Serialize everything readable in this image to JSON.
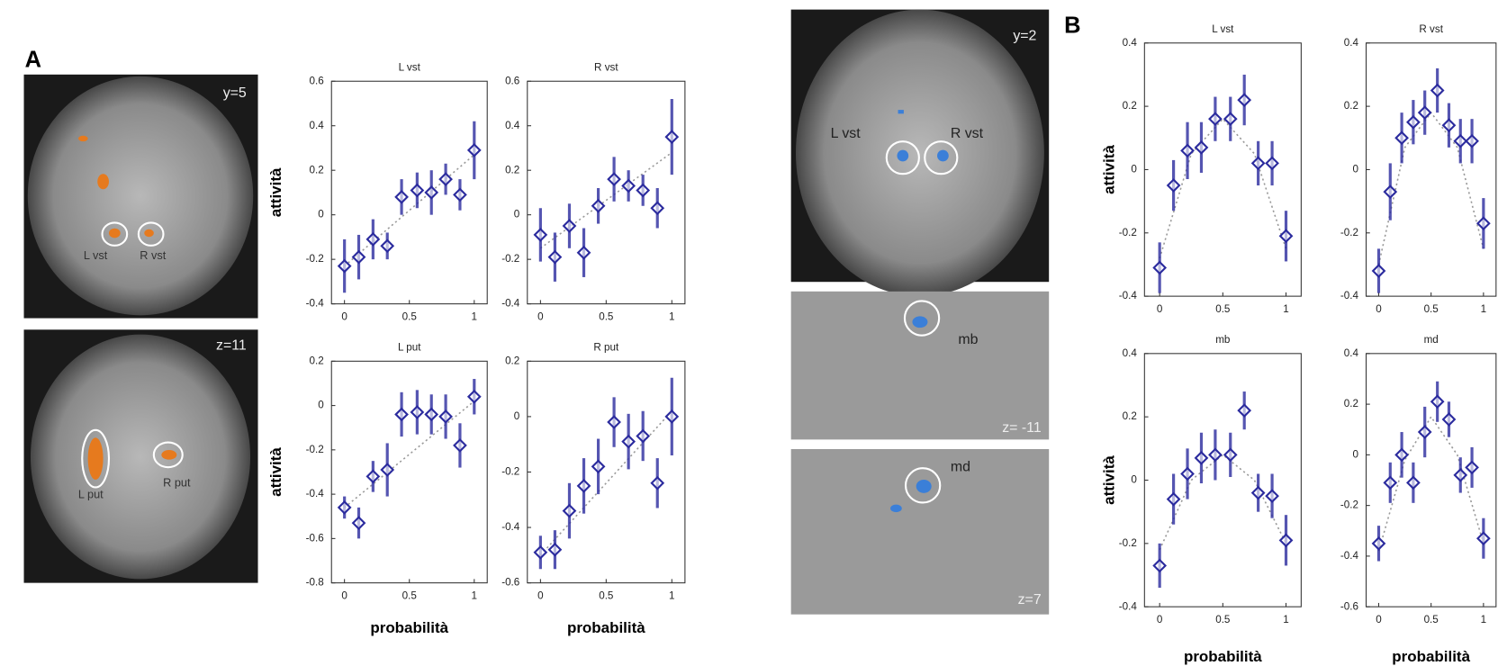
{
  "figure": {
    "panel_labels": [
      "A",
      "B"
    ],
    "images": [
      {
        "labels": [
          "y=5",
          "L vst",
          "R vst"
        ]
      },
      {
        "labels": [
          "z=11",
          "L put",
          "R put"
        ]
      },
      {
        "labels": [
          "y=2",
          "L vst",
          "R vst"
        ]
      },
      {
        "labels": [
          "mb",
          "z= -11"
        ]
      },
      {
        "labels": [
          "md",
          "z=7"
        ]
      }
    ]
  },
  "chart_data": [
    {
      "type": "errorbar",
      "title": "L vst",
      "y_label": "attività",
      "color": "#2b2b9e",
      "fit_color": "#999999",
      "x": [
        0,
        0.11,
        0.22,
        0.33,
        0.44,
        0.56,
        0.67,
        0.78,
        0.89,
        1
      ],
      "values": [
        -0.23,
        -0.19,
        -0.11,
        -0.14,
        0.08,
        0.11,
        0.1,
        0.16,
        0.09,
        0.29
      ],
      "errors": [
        0.12,
        0.1,
        0.09,
        0.06,
        0.08,
        0.08,
        0.1,
        0.07,
        0.07,
        0.13
      ],
      "fit_x": [
        0,
        1
      ],
      "fit_values": [
        -0.23,
        0.27
      ],
      "xlim": [
        -0.1,
        1.1
      ],
      "ylim": [
        -0.4,
        0.6
      ],
      "xticks": [
        0,
        0.5,
        1
      ],
      "yticks": [
        -0.4,
        -0.2,
        0,
        0.2,
        0.4,
        0.6
      ]
    },
    {
      "type": "errorbar",
      "title": "R vst",
      "color": "#2b2b9e",
      "fit_color": "#999999",
      "x": [
        0,
        0.11,
        0.22,
        0.33,
        0.44,
        0.56,
        0.67,
        0.78,
        0.89,
        1
      ],
      "values": [
        -0.09,
        -0.19,
        -0.05,
        -0.17,
        0.04,
        0.16,
        0.13,
        0.11,
        0.03,
        0.35
      ],
      "errors": [
        0.12,
        0.11,
        0.1,
        0.11,
        0.08,
        0.1,
        0.07,
        0.07,
        0.09,
        0.17
      ],
      "fit_x": [
        0,
        1
      ],
      "fit_values": [
        -0.15,
        0.28
      ],
      "xlim": [
        -0.1,
        1.1
      ],
      "ylim": [
        -0.4,
        0.6
      ],
      "xticks": [
        0,
        0.5,
        1
      ],
      "yticks": [
        -0.4,
        -0.2,
        0,
        0.2,
        0.4,
        0.6
      ]
    },
    {
      "type": "errorbar",
      "title": "L put",
      "y_label": "attività",
      "x_label": "probabilità",
      "color": "#2b2b9e",
      "fit_color": "#999999",
      "x": [
        0,
        0.11,
        0.22,
        0.33,
        0.44,
        0.56,
        0.67,
        0.78,
        0.89,
        1
      ],
      "values": [
        -0.46,
        -0.53,
        -0.32,
        -0.29,
        -0.04,
        -0.03,
        -0.04,
        -0.05,
        -0.18,
        0.04
      ],
      "errors": [
        0.05,
        0.07,
        0.07,
        0.12,
        0.1,
        0.1,
        0.09,
        0.1,
        0.1,
        0.08
      ],
      "fit_x": [
        0,
        1
      ],
      "fit_values": [
        -0.46,
        0.02
      ],
      "xlim": [
        -0.1,
        1.1
      ],
      "ylim": [
        -0.8,
        0.2
      ],
      "xticks": [
        0,
        0.5,
        1
      ],
      "yticks": [
        -0.8,
        -0.6,
        -0.4,
        -0.2,
        0,
        0.2
      ]
    },
    {
      "type": "errorbar",
      "title": "R put",
      "x_label": "probabilità",
      "color": "#2b2b9e",
      "fit_color": "#999999",
      "x": [
        0,
        0.11,
        0.22,
        0.33,
        0.44,
        0.56,
        0.67,
        0.78,
        0.89,
        1
      ],
      "values": [
        -0.49,
        -0.48,
        -0.34,
        -0.25,
        -0.18,
        -0.02,
        -0.09,
        -0.07,
        -0.24,
        0
      ],
      "errors": [
        0.06,
        0.07,
        0.1,
        0.1,
        0.1,
        0.09,
        0.1,
        0.09,
        0.09,
        0.14
      ],
      "fit_x": [
        0,
        1
      ],
      "fit_values": [
        -0.5,
        0.02
      ],
      "xlim": [
        -0.1,
        1.1
      ],
      "ylim": [
        -0.6,
        0.2
      ],
      "xticks": [
        0,
        0.5,
        1
      ],
      "yticks": [
        -0.6,
        -0.4,
        -0.2,
        0,
        0.2
      ]
    },
    {
      "type": "errorbar",
      "title": "L vst",
      "y_label": "attività",
      "color": "#2b2b9e",
      "fit_color": "#999999",
      "x": [
        0,
        0.11,
        0.22,
        0.33,
        0.44,
        0.56,
        0.67,
        0.78,
        0.89,
        1
      ],
      "values": [
        -0.31,
        -0.05,
        0.06,
        0.07,
        0.16,
        0.16,
        0.22,
        0.02,
        0.02,
        -0.21
      ],
      "errors": [
        0.08,
        0.08,
        0.09,
        0.08,
        0.07,
        0.07,
        0.08,
        0.07,
        0.07,
        0.08
      ],
      "fit_x": [
        0,
        0.25,
        0.5,
        0.75,
        1
      ],
      "fit_values": [
        -0.28,
        0.05,
        0.16,
        0.05,
        -0.25
      ],
      "xlim": [
        -0.12,
        1.12
      ],
      "ylim": [
        -0.4,
        0.4
      ],
      "xticks": [
        0,
        0.5,
        1
      ],
      "yticks": [
        -0.4,
        -0.2,
        0,
        0.2,
        0.4
      ]
    },
    {
      "type": "errorbar",
      "title": "R vst",
      "color": "#2b2b9e",
      "fit_color": "#999999",
      "x": [
        0,
        0.11,
        0.22,
        0.33,
        0.44,
        0.56,
        0.67,
        0.78,
        0.89,
        1
      ],
      "values": [
        -0.32,
        -0.07,
        0.1,
        0.15,
        0.18,
        0.25,
        0.14,
        0.09,
        0.09,
        -0.17
      ],
      "errors": [
        0.07,
        0.09,
        0.08,
        0.07,
        0.07,
        0.07,
        0.07,
        0.07,
        0.07,
        0.08
      ],
      "fit_x": [
        0,
        0.25,
        0.5,
        0.75,
        1
      ],
      "fit_values": [
        -0.3,
        0.07,
        0.18,
        0.07,
        -0.25
      ],
      "xlim": [
        -0.12,
        1.12
      ],
      "ylim": [
        -0.4,
        0.4
      ],
      "xticks": [
        0,
        0.5,
        1
      ],
      "yticks": [
        -0.4,
        -0.2,
        0,
        0.2,
        0.4
      ]
    },
    {
      "type": "errorbar",
      "title": "mb",
      "y_label": "attività",
      "x_label": "probabilità",
      "color": "#2b2b9e",
      "fit_color": "#999999",
      "x": [
        0,
        0.11,
        0.22,
        0.33,
        0.44,
        0.56,
        0.67,
        0.78,
        0.89,
        1
      ],
      "values": [
        -0.27,
        -0.06,
        0.02,
        0.07,
        0.08,
        0.08,
        0.22,
        -0.04,
        -0.05,
        -0.19
      ],
      "errors": [
        0.07,
        0.08,
        0.08,
        0.08,
        0.08,
        0.07,
        0.06,
        0.06,
        0.07,
        0.08
      ],
      "fit_x": [
        0,
        0.25,
        0.5,
        0.75,
        1
      ],
      "fit_values": [
        -0.22,
        0,
        0.08,
        0,
        -0.2
      ],
      "xlim": [
        -0.12,
        1.12
      ],
      "ylim": [
        -0.4,
        0.4
      ],
      "xticks": [
        0,
        0.5,
        1
      ],
      "yticks": [
        -0.4,
        -0.2,
        0,
        0.2,
        0.4
      ]
    },
    {
      "type": "errorbar",
      "title": "md",
      "x_label": "probabilità",
      "color": "#2b2b9e",
      "fit_color": "#999999",
      "x": [
        0,
        0.11,
        0.22,
        0.33,
        0.44,
        0.56,
        0.67,
        0.78,
        0.89,
        1
      ],
      "values": [
        -0.35,
        -0.11,
        0,
        -0.11,
        0.09,
        0.21,
        0.14,
        -0.08,
        -0.05,
        -0.33
      ],
      "errors": [
        0.07,
        0.08,
        0.09,
        0.08,
        0.1,
        0.08,
        0.07,
        0.07,
        0.08,
        0.08
      ],
      "fit_x": [
        0,
        0.25,
        0.5,
        0.75,
        1
      ],
      "fit_values": [
        -0.38,
        -0.02,
        0.15,
        0,
        -0.35
      ],
      "xlim": [
        -0.12,
        1.12
      ],
      "ylim": [
        -0.6,
        0.4
      ],
      "xticks": [
        0,
        0.5,
        1
      ],
      "yticks": [
        -0.6,
        -0.4,
        -0.2,
        0,
        0.2,
        0.4
      ]
    }
  ]
}
